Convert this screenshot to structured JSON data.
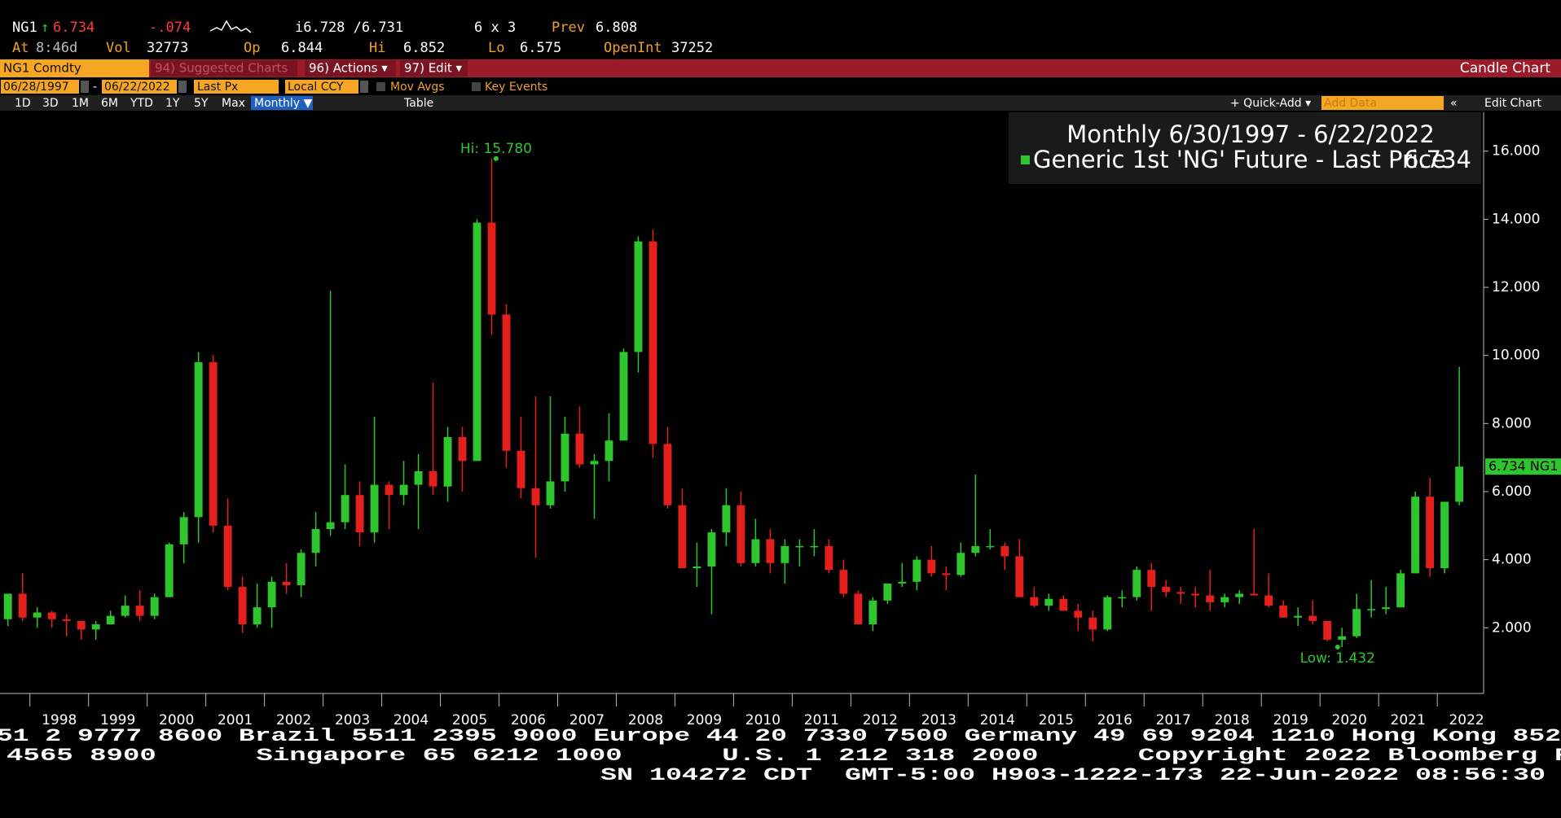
{
  "quote": {
    "symbol": "NG1",
    "arrow": "↑",
    "last": "6.734",
    "change": "-.074",
    "bid_ask": "i6.728 /6.731",
    "size": "6 x 3",
    "prev_label": "Prev",
    "prev": "6.808",
    "time_label": "At",
    "time": "8:46d",
    "vol_label": "Vol",
    "vol": "32773",
    "open_label": "Op",
    "open": "6.844",
    "hi_label": "Hi",
    "hi": "6.852",
    "lo_label": "Lo",
    "lo": "6.575",
    "oi_label": "OpenInt",
    "oi": "37252"
  },
  "toolbar": {
    "security": "NG1 Comdty",
    "suggested": "94) Suggested Charts",
    "actions": "96) Actions ▾",
    "edit": "97) Edit ▾",
    "chart_type": "Candle Chart",
    "start_date": "06/28/1997",
    "end_date": "06/22/2022",
    "field": "Last Px",
    "currency": "Local CCY",
    "mov_avgs": "Mov Avgs",
    "key_events": "Key Events",
    "periods": [
      "1D",
      "3D",
      "1M",
      "6M",
      "YTD",
      "1Y",
      "5Y",
      "Max"
    ],
    "frequency": "Monthly ▼",
    "table": "Table",
    "quick_add": "+ Quick-Add ▾",
    "add_data": "Add Data",
    "edit_chart": "Edit Chart"
  },
  "chart_data": {
    "type": "candlestick",
    "legend_title": "Monthly 6/30/1997 - 6/22/2022",
    "series_name": "Generic 1st 'NG' Future - Last Price",
    "series_last": "6.734",
    "last_tag": "6.734 NG1",
    "last_value": 6.734,
    "up_color": "#2fc52f",
    "down_color": "#e3201c",
    "annotations": [
      {
        "text": "Hi: 15.780",
        "x": 2005.95,
        "y": 15.78
      },
      {
        "text": "Low: 1.432",
        "x": 2020.3,
        "y": 1.432
      }
    ],
    "xlim": [
      1997.49,
      2022.79
    ],
    "ylim": [
      0.07,
      17.14
    ],
    "yticks": [
      {
        "value": 2,
        "label": "2.000"
      },
      {
        "value": 4,
        "label": "4.000"
      },
      {
        "value": 6,
        "label": "6.000"
      },
      {
        "value": 8,
        "label": "8.000"
      },
      {
        "value": 10,
        "label": "10.000"
      },
      {
        "value": 12,
        "label": "12.000"
      },
      {
        "value": 14,
        "label": "14.000"
      },
      {
        "value": 16,
        "label": "16.000"
      }
    ],
    "xticks": [
      {
        "value": 1998.5,
        "label": "1998"
      },
      {
        "value": 1999.5,
        "label": "1999"
      },
      {
        "value": 2000.5,
        "label": "2000"
      },
      {
        "value": 2001.5,
        "label": "2001"
      },
      {
        "value": 2002.5,
        "label": "2002"
      },
      {
        "value": 2003.5,
        "label": "2003"
      },
      {
        "value": 2004.5,
        "label": "2004"
      },
      {
        "value": 2005.5,
        "label": "2005"
      },
      {
        "value": 2006.5,
        "label": "2006"
      },
      {
        "value": 2007.5,
        "label": "2007"
      },
      {
        "value": 2008.5,
        "label": "2008"
      },
      {
        "value": 2009.5,
        "label": "2009"
      },
      {
        "value": 2010.5,
        "label": "2010"
      },
      {
        "value": 2011.5,
        "label": "2011"
      },
      {
        "value": 2012.5,
        "label": "2012"
      },
      {
        "value": 2013.5,
        "label": "2013"
      },
      {
        "value": 2014.5,
        "label": "2014"
      },
      {
        "value": 2015.5,
        "label": "2015"
      },
      {
        "value": 2016.5,
        "label": "2016"
      },
      {
        "value": 2017.5,
        "label": "2017"
      },
      {
        "value": 2018.5,
        "label": "2018"
      },
      {
        "value": 2019.5,
        "label": "2019"
      },
      {
        "value": 2020.5,
        "label": "2020"
      },
      {
        "value": 2021.5,
        "label": "2021"
      },
      {
        "value": 2022.5,
        "label": "2022"
      }
    ],
    "xtick_marks": [
      1998,
      1999,
      2000,
      2001,
      2002,
      2003,
      2004,
      2005,
      2006,
      2007,
      2008,
      2009,
      2010,
      2011,
      2012,
      2013,
      2014,
      2015,
      2016,
      2017,
      2018,
      2019,
      2020,
      2021,
      2022
    ],
    "x": [
      1997.625,
      1997.875,
      1998.125,
      1998.375,
      1998.625,
      1998.875,
      1999.125,
      1999.375,
      1999.625,
      1999.875,
      2000.125,
      2000.375,
      2000.625,
      2000.875,
      2001.125,
      2001.375,
      2001.625,
      2001.875,
      2002.125,
      2002.375,
      2002.625,
      2002.875,
      2003.125,
      2003.375,
      2003.625,
      2003.875,
      2004.125,
      2004.375,
      2004.625,
      2004.875,
      2005.125,
      2005.375,
      2005.625,
      2005.875,
      2006.125,
      2006.375,
      2006.625,
      2006.875,
      2007.125,
      2007.375,
      2007.625,
      2007.875,
      2008.125,
      2008.375,
      2008.625,
      2008.875,
      2009.125,
      2009.375,
      2009.625,
      2009.875,
      2010.125,
      2010.375,
      2010.625,
      2010.875,
      2011.125,
      2011.375,
      2011.625,
      2011.875,
      2012.125,
      2012.375,
      2012.625,
      2012.875,
      2013.125,
      2013.375,
      2013.625,
      2013.875,
      2014.125,
      2014.375,
      2014.625,
      2014.875,
      2015.125,
      2015.375,
      2015.625,
      2015.875,
      2016.125,
      2016.375,
      2016.625,
      2016.875,
      2017.125,
      2017.375,
      2017.625,
      2017.875,
      2018.125,
      2018.375,
      2018.625,
      2018.875,
      2019.125,
      2019.375,
      2019.625,
      2019.875,
      2020.125,
      2020.375,
      2020.625,
      2020.875,
      2021.125,
      2021.375,
      2021.625,
      2021.875,
      2022.125,
      2022.375
    ],
    "open": [
      2.25,
      3.0,
      2.3,
      2.45,
      2.25,
      2.2,
      1.95,
      2.1,
      2.35,
      2.65,
      2.35,
      2.9,
      4.45,
      5.25,
      9.8,
      5.0,
      3.2,
      2.1,
      2.6,
      3.35,
      3.25,
      4.2,
      4.9,
      5.1,
      5.9,
      4.8,
      6.2,
      5.9,
      6.2,
      6.6,
      6.15,
      7.6,
      6.9,
      13.9,
      11.2,
      7.2,
      6.1,
      5.6,
      6.3,
      7.7,
      6.8,
      6.9,
      7.5,
      10.1,
      13.35,
      7.4,
      5.6,
      3.75,
      3.8,
      4.8,
      5.6,
      3.9,
      4.6,
      3.9,
      4.4,
      4.4,
      4.4,
      3.7,
      3.0,
      2.1,
      2.8,
      3.3,
      3.35,
      4.0,
      3.6,
      3.55,
      4.2,
      4.4,
      4.4,
      4.1,
      2.9,
      2.65,
      2.85,
      2.5,
      2.3,
      1.95,
      2.9,
      2.9,
      3.7,
      3.2,
      3.05,
      3.0,
      2.95,
      2.75,
      2.9,
      3.0,
      2.95,
      2.65,
      2.3,
      2.35,
      2.2,
      1.65,
      1.75,
      2.55,
      2.55,
      2.6,
      3.6,
      5.85,
      3.75,
      5.7
    ],
    "high": [
      3.0,
      3.6,
      2.6,
      2.5,
      2.4,
      2.2,
      2.2,
      2.5,
      2.95,
      3.1,
      3.0,
      4.5,
      5.4,
      10.1,
      10.0,
      5.8,
      3.5,
      3.3,
      3.5,
      3.9,
      4.3,
      5.4,
      11.9,
      6.8,
      6.3,
      8.2,
      6.3,
      6.9,
      7.1,
      9.2,
      7.9,
      7.9,
      14.0,
      15.78,
      11.5,
      8.2,
      8.8,
      8.8,
      8.2,
      8.5,
      7.1,
      8.3,
      10.2,
      13.5,
      13.7,
      7.9,
      6.1,
      4.5,
      4.9,
      6.1,
      6.0,
      5.2,
      4.9,
      4.6,
      4.6,
      4.9,
      4.6,
      4.0,
      3.1,
      2.9,
      3.3,
      3.9,
      4.1,
      4.4,
      3.8,
      4.5,
      6.5,
      4.9,
      4.5,
      4.6,
      3.2,
      3.0,
      2.95,
      2.7,
      2.5,
      2.95,
      3.1,
      3.8,
      3.9,
      3.4,
      3.2,
      3.2,
      3.7,
      3.0,
      3.1,
      4.9,
      3.6,
      2.8,
      2.6,
      2.8,
      2.2,
      2.0,
      3.0,
      3.4,
      3.2,
      3.7,
      6.0,
      6.4,
      5.7,
      9.66
    ],
    "low": [
      2.05,
      2.2,
      2.0,
      2.0,
      1.75,
      1.65,
      1.65,
      2.1,
      2.3,
      2.2,
      2.25,
      2.9,
      3.9,
      4.5,
      4.8,
      3.1,
      1.85,
      2.0,
      2.0,
      3.0,
      2.9,
      3.8,
      4.7,
      4.9,
      4.4,
      4.5,
      4.9,
      5.6,
      4.9,
      5.9,
      5.7,
      6.0,
      6.9,
      10.6,
      6.7,
      5.8,
      4.05,
      5.5,
      6.0,
      6.7,
      5.2,
      6.3,
      7.5,
      9.5,
      7.0,
      5.5,
      3.9,
      3.2,
      2.4,
      4.4,
      3.8,
      3.8,
      3.6,
      3.3,
      3.8,
      4.1,
      3.6,
      2.9,
      2.1,
      1.9,
      2.7,
      3.2,
      3.1,
      3.5,
      3.1,
      3.5,
      4.1,
      4.3,
      3.7,
      2.9,
      2.6,
      2.5,
      2.5,
      1.9,
      1.6,
      1.9,
      2.6,
      2.8,
      2.5,
      2.9,
      2.7,
      2.6,
      2.5,
      2.6,
      2.7,
      3.0,
      2.6,
      2.3,
      2.05,
      2.1,
      1.6,
      1.432,
      1.7,
      2.3,
      2.4,
      2.6,
      3.6,
      3.5,
      3.6,
      5.6
    ],
    "close": [
      3.0,
      2.3,
      2.45,
      2.25,
      2.2,
      1.95,
      2.1,
      2.35,
      2.65,
      2.35,
      2.9,
      4.45,
      5.25,
      9.8,
      5.0,
      3.2,
      2.1,
      2.6,
      3.35,
      3.25,
      4.2,
      4.9,
      5.1,
      5.9,
      4.8,
      6.2,
      5.9,
      6.2,
      6.6,
      6.15,
      7.6,
      6.9,
      13.9,
      11.2,
      7.2,
      6.1,
      5.6,
      6.3,
      7.7,
      6.8,
      6.9,
      7.5,
      10.1,
      13.35,
      7.4,
      5.6,
      3.75,
      3.8,
      4.8,
      5.6,
      3.9,
      4.6,
      3.9,
      4.4,
      4.4,
      4.4,
      3.7,
      3.0,
      2.1,
      2.8,
      3.3,
      3.35,
      4.0,
      3.6,
      3.55,
      4.2,
      4.4,
      4.4,
      4.1,
      2.9,
      2.65,
      2.85,
      2.5,
      2.3,
      1.95,
      2.9,
      2.9,
      3.7,
      3.2,
      3.05,
      3.0,
      2.95,
      2.75,
      2.9,
      3.0,
      2.95,
      2.65,
      2.3,
      2.35,
      2.2,
      1.65,
      1.75,
      2.55,
      2.55,
      2.6,
      3.6,
      5.85,
      3.75,
      5.7,
      6.734
    ]
  },
  "footer": [
    "51 2 9777 8600 Brazil 5511 2395 9000 Europe 44 20 7330 7500 Germany 49 69 9204 1210 Hong Kong 852",
    "4565 8900      Singapore 65 6212 1000      U.S. 1 212 318 2000      Copyright 2022 Bloomberg F",
    "SN 104272 CDT  GMT-5:00 H903-1222-173 22-Jun-2022 08:56:30"
  ]
}
